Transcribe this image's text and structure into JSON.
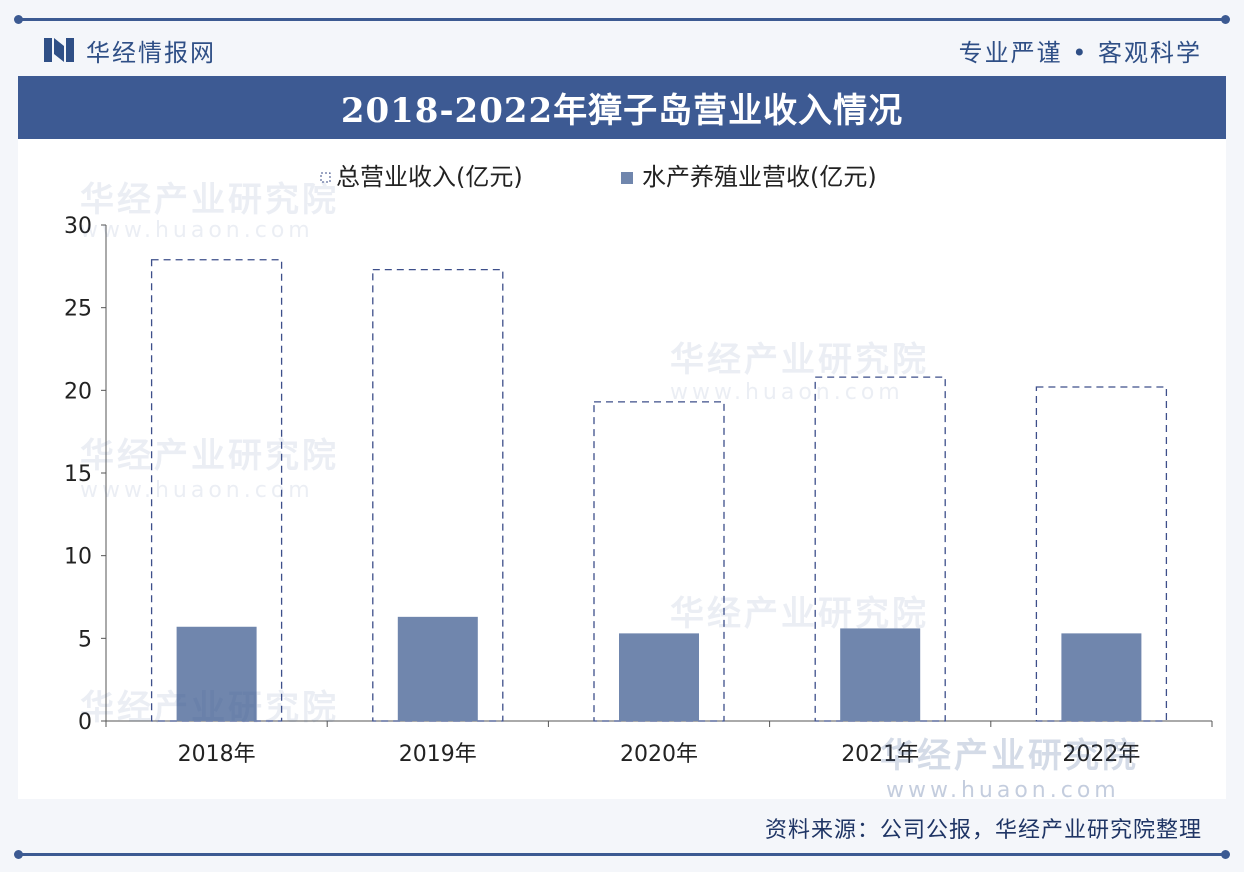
{
  "header": {
    "brand": "华经情报网",
    "motto": "专业严谨 • 客观科学"
  },
  "colors": {
    "brand": "#3d5a93",
    "bar_fill": "#7086ad",
    "dashed_outline": "#3d4f8a",
    "axis": "#555555"
  },
  "chart_data": {
    "type": "bar",
    "title": "2018-2022年獐子岛营业收入情况",
    "categories": [
      "2018年",
      "2019年",
      "2020年",
      "2021年",
      "2022年"
    ],
    "series": [
      {
        "name": "总营业收入(亿元)",
        "values": [
          27.9,
          27.3,
          19.3,
          20.8,
          20.2
        ],
        "style": "dashed-outline"
      },
      {
        "name": "水产养殖业营收(亿元)",
        "values": [
          5.7,
          6.3,
          5.3,
          5.6,
          5.3
        ],
        "style": "solid"
      }
    ],
    "ylim": [
      0,
      30
    ],
    "yticks": [
      0,
      5,
      10,
      15,
      20,
      25,
      30
    ],
    "legend": "top-center",
    "grid": false
  },
  "watermark": {
    "text": "华经产业研究院",
    "url": "www.huaon.com"
  },
  "footer": {
    "source": "资料来源：公司公报，华经产业研究院整理"
  }
}
